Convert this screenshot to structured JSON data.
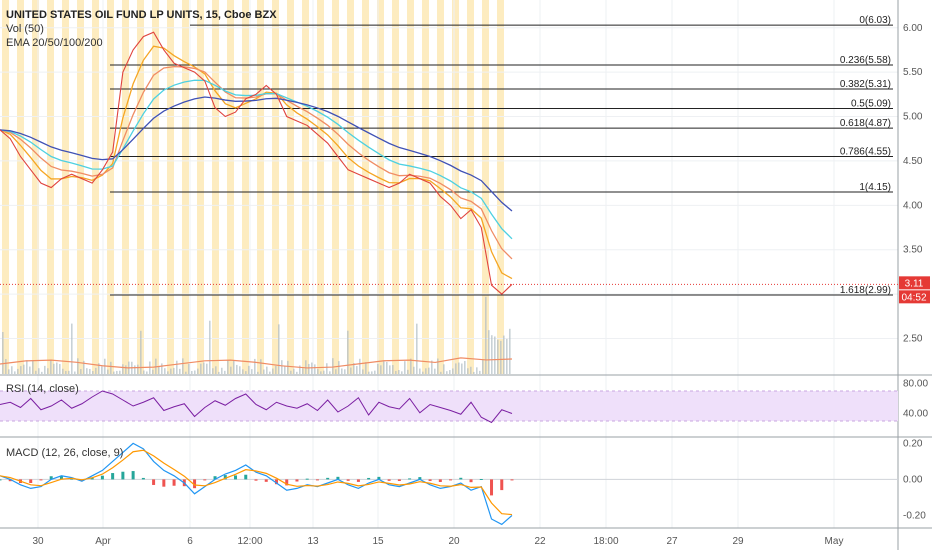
{
  "chart_data": {
    "type": "line",
    "title": "UNITED STATES OIL FUND LP UNITS, 15, Cboe BZX",
    "indicators": {
      "volume": "Vol (50)",
      "ema": "EMA 20/50/100/200",
      "rsi": "RSI (14, close)",
      "macd": "MACD (12, 26, close, 9)"
    },
    "price_axis": {
      "ticks": [
        "6.00",
        "5.50",
        "5.00",
        "4.50",
        "4.00",
        "3.50",
        "2.50"
      ],
      "range": [
        2.1,
        6.2
      ]
    },
    "rsi_axis": {
      "ticks": [
        "80.00",
        "40.00"
      ],
      "range": [
        10,
        90
      ]
    },
    "macd_axis": {
      "ticks": [
        "0.20",
        "0.00",
        "-0.20"
      ],
      "range": [
        -0.27,
        0.23
      ]
    },
    "time_axis": {
      "ticks": [
        "30",
        "Apr",
        "6",
        "12:00",
        "13",
        "15",
        "20",
        "22",
        "18:00",
        "27",
        "29",
        "May"
      ]
    },
    "current_price": "3.11",
    "countdown": "04:52",
    "fib_levels": [
      {
        "ratio": "0",
        "label": "0(6.03)",
        "price": 6.03
      },
      {
        "ratio": "0.236",
        "label": "0.236(5.58)",
        "price": 5.58
      },
      {
        "ratio": "0.382",
        "label": "0.382(5.31)",
        "price": 5.31
      },
      {
        "ratio": "0.5",
        "label": "0.5(5.09)",
        "price": 5.09
      },
      {
        "ratio": "0.618",
        "label": "0.618(4.87)",
        "price": 4.87
      },
      {
        "ratio": "0.786",
        "label": "0.786(4.55)",
        "price": 4.55
      },
      {
        "ratio": "1",
        "label": "1(4.15)",
        "price": 4.15
      },
      {
        "ratio": "1.618",
        "label": "1.618(2.99)",
        "price": 2.99
      }
    ],
    "price_series": {
      "x": [
        0,
        0.02,
        0.04,
        0.06,
        0.08,
        0.1,
        0.12,
        0.14,
        0.16,
        0.18,
        0.2,
        0.22,
        0.24,
        0.26,
        0.28,
        0.3,
        0.32,
        0.34,
        0.36,
        0.38,
        0.4,
        0.42,
        0.44,
        0.46,
        0.48,
        0.5,
        0.52,
        0.54,
        0.56,
        0.58,
        0.6,
        0.62,
        0.64,
        0.66,
        0.68,
        0.7,
        0.72,
        0.74,
        0.76,
        0.78,
        0.8,
        0.82,
        0.84,
        0.86,
        0.88,
        0.9,
        0.92,
        0.94,
        0.96,
        0.98,
        1.0
      ],
      "y": [
        4.85,
        4.75,
        4.55,
        4.4,
        4.25,
        4.2,
        4.3,
        4.35,
        4.3,
        4.25,
        4.4,
        4.6,
        5.5,
        5.75,
        5.9,
        5.95,
        5.75,
        5.6,
        5.55,
        5.5,
        5.4,
        5.1,
        5.0,
        5.05,
        5.2,
        5.25,
        5.35,
        5.25,
        5.0,
        4.95,
        4.9,
        4.8,
        4.7,
        4.55,
        4.4,
        4.35,
        4.3,
        4.25,
        4.2,
        4.25,
        4.35,
        4.3,
        4.25,
        4.1,
        4.0,
        3.85,
        3.95,
        3.75,
        3.1,
        3.0,
        3.11
      ]
    },
    "rsi_series": [
      52,
      55,
      48,
      60,
      45,
      50,
      58,
      47,
      53,
      62,
      70,
      66,
      58,
      50,
      55,
      61,
      44,
      49,
      53,
      36,
      48,
      57,
      51,
      60,
      66,
      52,
      45,
      55,
      50,
      47,
      53,
      44,
      58,
      42,
      50,
      61,
      38,
      55,
      49,
      46,
      60,
      41,
      52,
      48,
      44,
      39,
      55,
      35,
      28,
      45,
      40
    ],
    "macd_series": [
      0.02,
      0.0,
      -0.03,
      -0.05,
      -0.04,
      0.0,
      0.02,
      0.01,
      -0.01,
      0.02,
      0.05,
      0.1,
      0.15,
      0.2,
      0.17,
      0.1,
      0.05,
      0.02,
      -0.02,
      -0.08,
      -0.04,
      0.0,
      0.03,
      0.05,
      0.08,
      0.04,
      0.02,
      -0.02,
      -0.06,
      -0.05,
      -0.03,
      -0.04,
      -0.02,
      0.0,
      -0.03,
      -0.05,
      -0.02,
      0.0,
      -0.03,
      -0.04,
      -0.02,
      0.0,
      -0.03,
      -0.05,
      -0.04,
      -0.02,
      -0.06,
      -0.04,
      -0.22,
      -0.25,
      -0.2
    ],
    "colors": {
      "price": "#e0443e",
      "ema20": "#f5a623",
      "ema50": "#f08c64",
      "ema100": "#4dd0e1",
      "ema200": "#3f51b5",
      "fib": "#222222",
      "session_shade": "#fde9b5",
      "rsi": "#7b1fa2",
      "rsi_band": "#efe0fa",
      "macd": "#2196f3",
      "signal": "#ff9800",
      "hist_up": "#26a69a",
      "hist_down": "#ef5350",
      "price_tag": "#e53935",
      "volume": "#b0bec5"
    }
  }
}
